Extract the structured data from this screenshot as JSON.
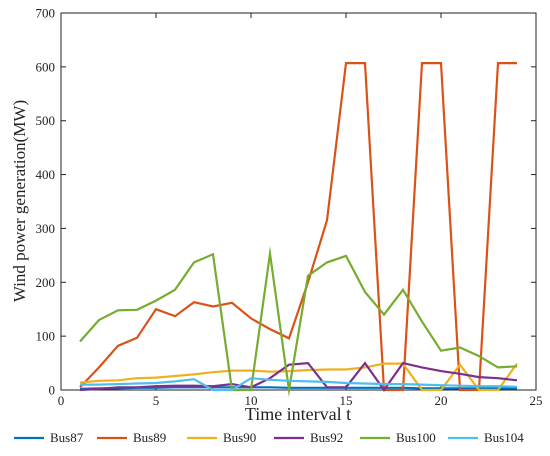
{
  "chart_data": {
    "type": "line",
    "xlabel": "Time interval t",
    "ylabel": "Wind power generation(MW)",
    "xlim": [
      0,
      25
    ],
    "ylim": [
      0,
      700
    ],
    "xticks": [
      0,
      5,
      10,
      15,
      20,
      25
    ],
    "yticks": [
      0,
      100,
      200,
      300,
      400,
      500,
      600,
      700
    ],
    "grid": false,
    "legend_position": "bottom",
    "x": [
      1,
      2,
      3,
      4,
      5,
      6,
      7,
      8,
      9,
      10,
      11,
      12,
      13,
      14,
      15,
      16,
      17,
      18,
      19,
      20,
      21,
      22,
      23,
      24
    ],
    "series": [
      {
        "name": "Bus87",
        "color": "#0072BD",
        "values": [
          2,
          3,
          3,
          4,
          4,
          5,
          5,
          5,
          5,
          5,
          5,
          4,
          4,
          4,
          4,
          4,
          4,
          4,
          3,
          3,
          3,
          3,
          3,
          3
        ]
      },
      {
        "name": "Bus89",
        "color": "#D95319",
        "values": [
          5,
          42,
          82,
          97,
          150,
          137,
          163,
          155,
          162,
          133,
          113,
          96,
          200,
          315,
          607,
          607,
          0,
          0,
          607,
          607,
          0,
          0,
          607,
          607
        ]
      },
      {
        "name": "Bus90",
        "color": "#EDB120",
        "values": [
          14,
          17,
          18,
          22,
          23,
          26,
          29,
          33,
          36,
          36,
          34,
          35,
          37,
          38,
          38,
          42,
          49,
          49,
          0,
          0,
          47,
          0,
          0,
          49
        ]
      },
      {
        "name": "Bus92",
        "color": "#7E2F8E",
        "values": [
          0,
          2,
          5,
          5,
          7,
          8,
          8,
          7,
          11,
          5,
          22,
          47,
          50,
          5,
          5,
          50,
          0,
          50,
          42,
          35,
          30,
          24,
          22,
          18
        ]
      },
      {
        "name": "Bus100",
        "color": "#77AC30",
        "values": [
          90,
          130,
          148,
          149,
          166,
          186,
          237,
          252,
          0,
          0,
          253,
          0,
          212,
          237,
          249,
          182,
          140,
          186,
          127,
          73,
          79,
          63,
          42,
          44
        ]
      },
      {
        "name": "Bus104",
        "color": "#4DBEEE",
        "values": [
          10,
          10,
          11,
          12,
          13,
          16,
          20,
          0,
          0,
          22,
          19,
          17,
          16,
          15,
          13,
          12,
          11,
          11,
          10,
          9,
          8,
          7,
          7,
          6
        ]
      }
    ]
  }
}
